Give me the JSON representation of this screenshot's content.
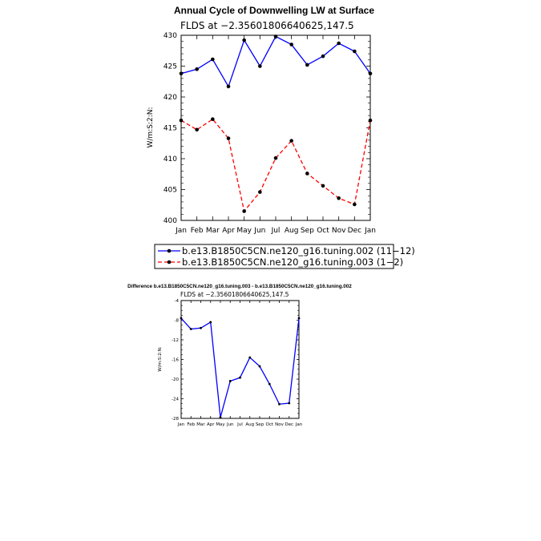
{
  "chart_data": [
    {
      "type": "line",
      "title": "Annual Cycle of Downwelling LW at Surface",
      "subtitle": "FLDS at −2.35601806640625,147.5",
      "xlabel": "",
      "ylabel": "W/m:S:2:N:",
      "categories": [
        "Jan",
        "Feb",
        "Mar",
        "Apr",
        "May",
        "Jun",
        "Jul",
        "Aug",
        "Sep",
        "Oct",
        "Nov",
        "Dec",
        "Jan"
      ],
      "ylim": [
        400,
        430
      ],
      "yticks": [
        "400",
        "405",
        "410",
        "415",
        "420",
        "425",
        "430"
      ],
      "grid": false,
      "legend_position": "bottom",
      "series": [
        {
          "name": "b.e13.B1850C5CN.ne120_g16.tuning.002 (11−12)",
          "color": "#0000ff",
          "dash": "solid",
          "values": [
            423.8,
            424.5,
            426.1,
            421.7,
            429.2,
            425.0,
            429.8,
            428.5,
            425.2,
            426.6,
            428.7,
            427.4,
            423.8
          ]
        },
        {
          "name": "b.e13.B1850C5CN.ne120_g16.tuning.003 (1−2)",
          "color": "#ff0000",
          "dash": "dashed",
          "values": [
            416.2,
            414.7,
            416.4,
            413.3,
            401.5,
            404.6,
            410.1,
            412.9,
            407.6,
            405.6,
            403.6,
            402.6,
            416.2
          ]
        }
      ]
    },
    {
      "type": "line",
      "title": "Difference b.e13.B1850C5CN.ne120_g16.tuning.003 - b.e13.B1850C5CN.ne120_g16.tuning.002",
      "subtitle": "FLDS at −2.35601806640625,147.5",
      "xlabel": "",
      "ylabel": "W/m:S:2:N:",
      "categories": [
        "Jan",
        "Feb",
        "Mar",
        "Apr",
        "May",
        "Jun",
        "Jul",
        "Aug",
        "Sep",
        "Oct",
        "Nov",
        "Dec",
        "Jan"
      ],
      "ylim": [
        -28,
        -4
      ],
      "yticks": [
        "-28",
        "-24",
        "-20",
        "-16",
        "-12",
        "-8",
        "-4"
      ],
      "grid": false,
      "series": [
        {
          "color": "#0000ff",
          "dash": "solid",
          "values": [
            -7.6,
            -9.8,
            -9.6,
            -8.4,
            -27.8,
            -20.4,
            -19.7,
            -15.6,
            -17.4,
            -21.0,
            -25.1,
            -24.9,
            -7.6
          ]
        }
      ]
    }
  ]
}
